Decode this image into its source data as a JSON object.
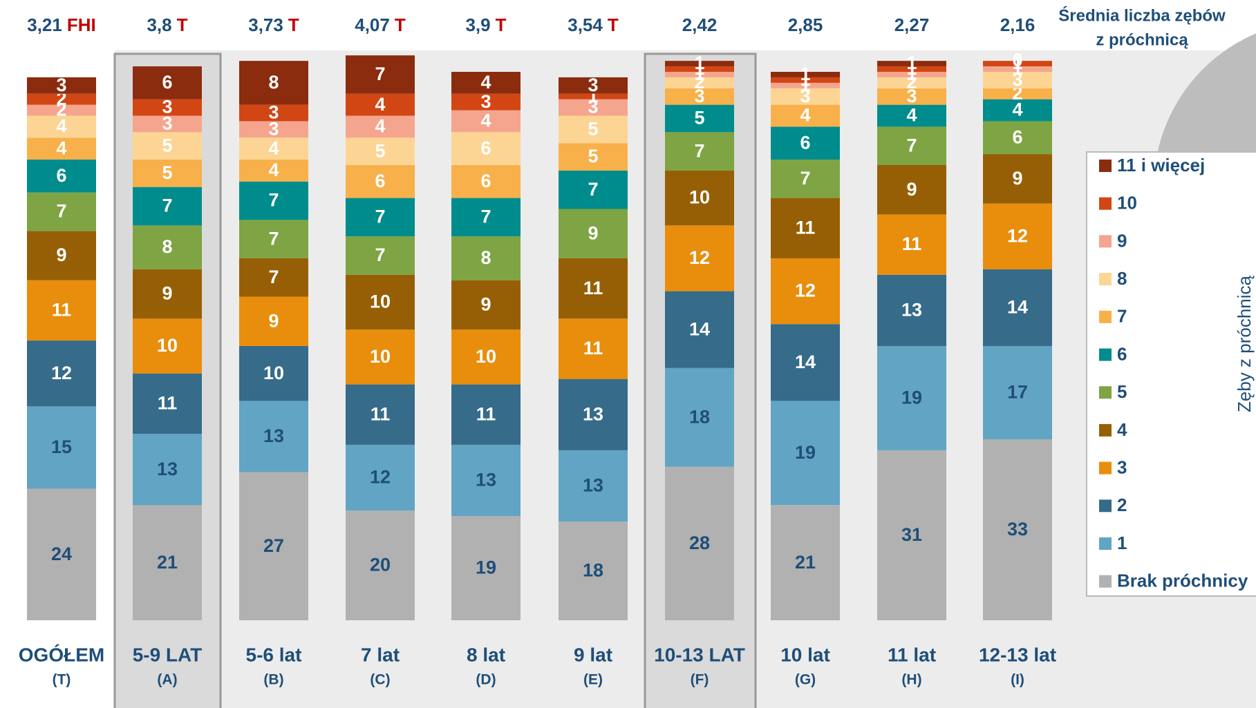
{
  "chart_data": {
    "type": "stacked_bar",
    "categories": [
      "OGÓŁEM",
      "5-9 LAT",
      "5-6 lat",
      "7 lat",
      "8 lat",
      "9 lat",
      "10-13 LAT",
      "10 lat",
      "11 lat",
      "12-13 lat"
    ],
    "codes": [
      "(T)",
      "(A)",
      "(B)",
      "(C)",
      "(D)",
      "(E)",
      "(F)",
      "(G)",
      "(H)",
      "(I)"
    ],
    "ylim": [
      0,
      100
    ],
    "mean_title": [
      "Średnia liczba zębów",
      "z próchnicą"
    ],
    "mean_values": [
      3.21,
      3.8,
      3.73,
      4.07,
      3.9,
      3.54,
      2.42,
      2.85,
      2.27,
      2.16
    ],
    "mean_value_labels": [
      "3,21",
      "3,8",
      "3,73",
      "4,07",
      "3,9",
      "3,54",
      "2,42",
      "2,85",
      "2,27",
      "2,16"
    ],
    "mean_markers": [
      "FHI",
      "T",
      "T",
      "T",
      "T",
      "T",
      null,
      null,
      null,
      null
    ],
    "side_label": "Zęby z próchnicą",
    "series": [
      {
        "name": "Brak próchnicy",
        "color": "#b1b1b1",
        "label_color": "#1f4e79",
        "values": [
          24,
          21,
          27,
          20,
          19,
          18,
          28,
          21,
          31,
          33
        ]
      },
      {
        "name": "1",
        "color": "#62a4c4",
        "label_color": "#1f4e79",
        "values": [
          15,
          13,
          13,
          12,
          13,
          13,
          18,
          19,
          19,
          17
        ]
      },
      {
        "name": "2",
        "color": "#366b8a",
        "label_color": "#ffffff",
        "values": [
          12,
          11,
          10,
          11,
          11,
          13,
          14,
          14,
          13,
          14
        ]
      },
      {
        "name": "3",
        "color": "#e88e0c",
        "label_color": "#ffffff",
        "values": [
          11,
          10,
          9,
          10,
          10,
          11,
          12,
          12,
          11,
          12
        ]
      },
      {
        "name": "4",
        "color": "#975f05",
        "label_color": "#ffffff",
        "values": [
          9,
          9,
          7,
          10,
          9,
          11,
          10,
          11,
          9,
          9
        ]
      },
      {
        "name": "5",
        "color": "#7ea444",
        "label_color": "#ffffff",
        "values": [
          7,
          8,
          7,
          7,
          8,
          9,
          7,
          7,
          7,
          6
        ]
      },
      {
        "name": "6",
        "color": "#008c8c",
        "label_color": "#ffffff",
        "values": [
          6,
          7,
          7,
          7,
          7,
          7,
          5,
          6,
          4,
          4
        ]
      },
      {
        "name": "7",
        "color": "#f8b04a",
        "label_color": "#ffffff",
        "values": [
          4,
          5,
          4,
          6,
          6,
          5,
          3,
          4,
          3,
          2
        ]
      },
      {
        "name": "8",
        "color": "#fcd595",
        "label_color": "#ffffff",
        "values": [
          4,
          5,
          4,
          5,
          6,
          5,
          2,
          3,
          2,
          3
        ]
      },
      {
        "name": "9",
        "color": "#f5a58e",
        "label_color": "#ffffff",
        "values": [
          2,
          3,
          3,
          4,
          4,
          3,
          1,
          1,
          1,
          1
        ]
      },
      {
        "name": "10",
        "color": "#d24614",
        "label_color": "#ffffff",
        "values": [
          2,
          3,
          3,
          4,
          3,
          1,
          1,
          1,
          1,
          1
        ]
      },
      {
        "name": "11 i więcej",
        "color": "#8b2c0f",
        "label_color": "#ffffff",
        "values": [
          3,
          6,
          8,
          7,
          4,
          3,
          1,
          1,
          1,
          0
        ]
      }
    ]
  }
}
